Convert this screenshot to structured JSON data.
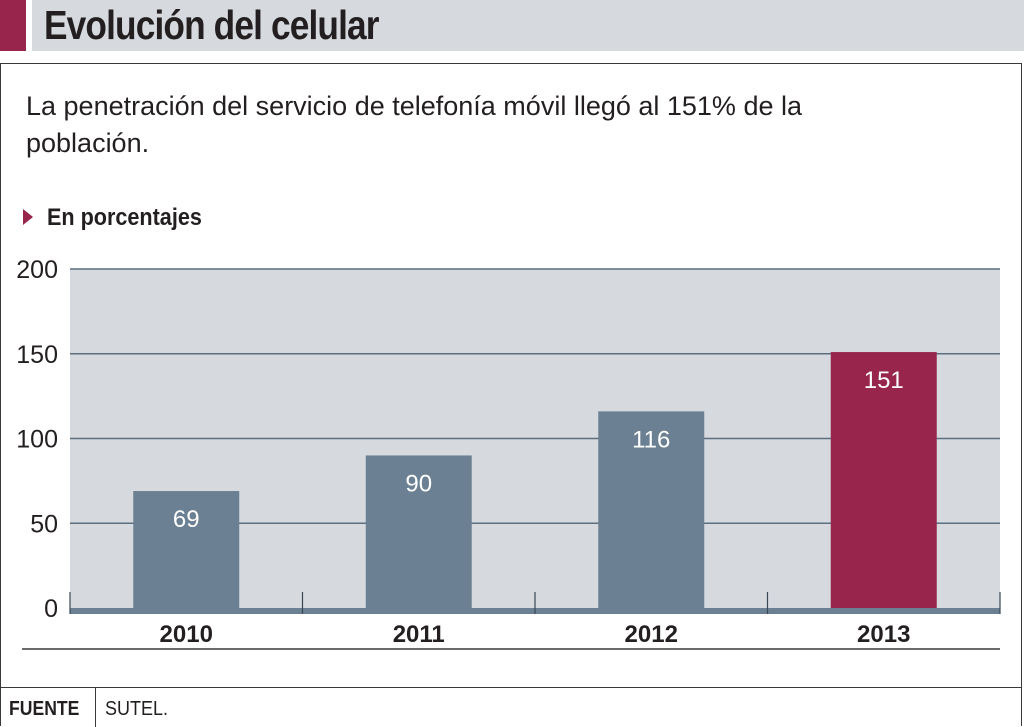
{
  "header": {
    "title": "Evolución del celular"
  },
  "subtitle": "La penetración del servicio de telefonía móvil llegó al 151% de la población.",
  "unit_label": "En porcentajes",
  "footer": {
    "label": "FUENTE",
    "source": "SUTEL."
  },
  "colors": {
    "accent": "#98264c",
    "bar": "#6b8193",
    "plot_bg": "#d6d9de",
    "gridline": "#5c6f80"
  },
  "chart_data": {
    "type": "bar",
    "title": "Evolución del celular",
    "subtitle": "La penetración del servicio de telefonía móvil llegó al 151% de la población.",
    "xlabel": "",
    "ylabel": "En porcentajes",
    "categories": [
      "2010",
      "2011",
      "2012",
      "2013"
    ],
    "values": [
      69,
      90,
      116,
      151
    ],
    "data_labels": [
      "69",
      "90",
      "116",
      "151"
    ],
    "highlight_index": 3,
    "ylim": [
      0,
      200
    ],
    "yticks": [
      0,
      50,
      100,
      150,
      200
    ],
    "grid": true,
    "legend": "none"
  }
}
